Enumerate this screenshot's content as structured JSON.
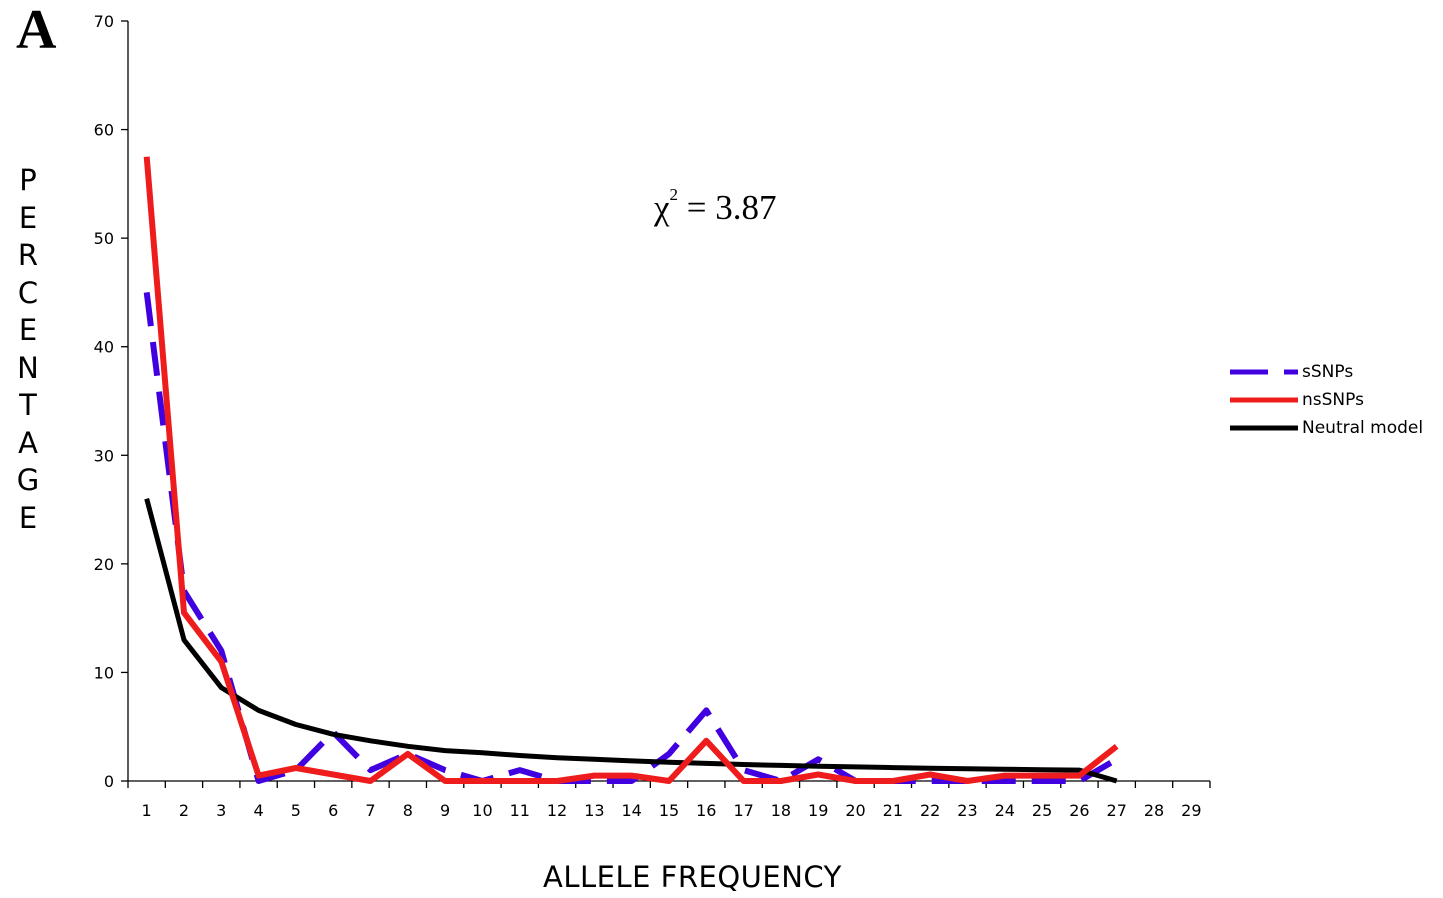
{
  "panel_label": "A",
  "annotation": {
    "symbol": "χ",
    "superscript": "2",
    "value": "= 3.87"
  },
  "colors": {
    "sSNPs": "#4000e0",
    "nsSNPs": "#ee1c1c",
    "neutral": "#000000",
    "axis": "#000000"
  },
  "chart_data": {
    "type": "line",
    "xlabel": "ALLELE FREQUENCY",
    "ylabel": "PERCENTAGE",
    "ylim": [
      0,
      70
    ],
    "yticks": [
      0,
      10,
      20,
      30,
      40,
      50,
      60,
      70
    ],
    "x": [
      1,
      2,
      3,
      4,
      5,
      6,
      7,
      8,
      9,
      10,
      11,
      12,
      13,
      14,
      15,
      16,
      17,
      18,
      19,
      20,
      21,
      22,
      23,
      24,
      25,
      26,
      27,
      28,
      29
    ],
    "xticks": [
      "1",
      "2",
      "3",
      "4",
      "5",
      "6",
      "7",
      "8",
      "9",
      "10",
      "11",
      "12",
      "13",
      "14",
      "15",
      "16",
      "17",
      "18",
      "19",
      "20",
      "21",
      "22",
      "23",
      "24",
      "25",
      "26",
      "27",
      "28",
      "29"
    ],
    "grid": false,
    "legend_position": "right",
    "series": [
      {
        "name": "sSNPs",
        "style": "dashed",
        "x": [
          1,
          2,
          3,
          4,
          5,
          6,
          7,
          8,
          9,
          10,
          11,
          12,
          13,
          14,
          15,
          16,
          17,
          18,
          19,
          20,
          21,
          22,
          23,
          24,
          25,
          26,
          27
        ],
        "values": [
          45,
          17.5,
          12,
          0,
          1,
          4.5,
          1,
          2.5,
          1,
          0,
          1,
          0,
          0,
          0,
          2.5,
          6.5,
          1,
          0,
          2,
          0,
          0,
          0,
          0,
          0,
          0,
          0,
          2
        ]
      },
      {
        "name": "nsSNPs",
        "style": "solid",
        "x": [
          1,
          2,
          3,
          4,
          5,
          6,
          7,
          8,
          9,
          10,
          11,
          12,
          13,
          14,
          15,
          16,
          17,
          18,
          19,
          20,
          21,
          22,
          23,
          24,
          25,
          26,
          27
        ],
        "values": [
          57.5,
          15.5,
          11,
          0.5,
          1.2,
          0.6,
          0,
          2.5,
          0,
          0,
          0,
          0,
          0.5,
          0.5,
          0,
          3.7,
          0,
          0,
          0.6,
          0,
          0,
          0.6,
          0,
          0.5,
          0.5,
          0.5,
          3.2
        ]
      },
      {
        "name": "Neutral model",
        "style": "solid",
        "x": [
          1,
          2,
          3,
          4,
          5,
          6,
          7,
          8,
          9,
          10,
          11,
          12,
          13,
          14,
          15,
          16,
          17,
          18,
          19,
          20,
          21,
          22,
          23,
          24,
          25,
          26,
          27
        ],
        "values": [
          26,
          13,
          8.6,
          6.5,
          5.2,
          4.3,
          3.7,
          3.2,
          2.8,
          2.6,
          2.35,
          2.15,
          2.0,
          1.85,
          1.73,
          1.62,
          1.52,
          1.44,
          1.36,
          1.3,
          1.23,
          1.18,
          1.13,
          1.08,
          1.04,
          1.0,
          0
        ]
      }
    ]
  }
}
